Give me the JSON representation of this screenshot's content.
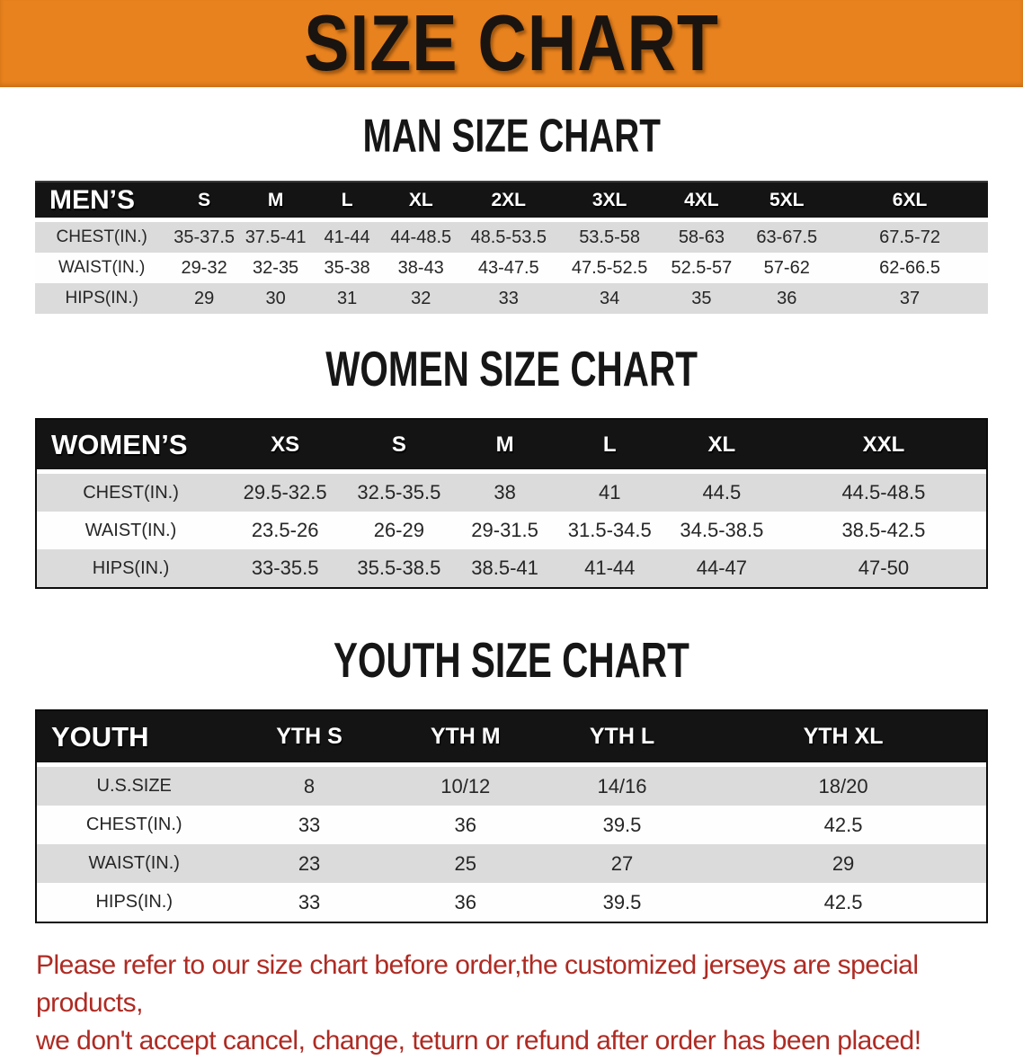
{
  "banner": {
    "title": "SIZE CHART",
    "bg_color": "#E8821E",
    "text_color": "#1a1410"
  },
  "colors": {
    "header_band": "#141414",
    "stripe_gray": "#DBDBDB",
    "stripe_white": "#FEFEFE",
    "disclaimer_red": "#AE2B23"
  },
  "sections": [
    {
      "heading": "MAN SIZE CHART",
      "table": {
        "header": [
          "MEN’S",
          "S",
          "M",
          "L",
          "XL",
          "2XL",
          "3XL",
          "4XL",
          "5XL",
          "6XL"
        ],
        "rows": [
          [
            "CHEST(IN.)",
            "35-37.5",
            "37.5-41",
            "41-44",
            "44-48.5",
            "48.5-53.5",
            "53.5-58",
            "58-63",
            "63-67.5",
            "67.5-72"
          ],
          [
            "WAIST(IN.)",
            "29-32",
            "32-35",
            "35-38",
            "38-43",
            "43-47.5",
            "47.5-52.5",
            "52.5-57",
            "57-62",
            "62-66.5"
          ],
          [
            "HIPS(IN.)",
            "29",
            "30",
            "31",
            "32",
            "33",
            "34",
            "35",
            "36",
            "37"
          ]
        ]
      }
    },
    {
      "heading": "WOMEN SIZE CHART",
      "table": {
        "header": [
          "WOMEN’S",
          "XS",
          "S",
          "M",
          "L",
          "XL",
          "XXL"
        ],
        "rows": [
          [
            "CHEST(IN.)",
            "29.5-32.5",
            "32.5-35.5",
            "38",
            "41",
            "44.5",
            "44.5-48.5"
          ],
          [
            "WAIST(IN.)",
            "23.5-26",
            "26-29",
            "29-31.5",
            "31.5-34.5",
            "34.5-38.5",
            "38.5-42.5"
          ],
          [
            "HIPS(IN.)",
            "33-35.5",
            "35.5-38.5",
            "38.5-41",
            "41-44",
            "44-47",
            "47-50"
          ]
        ]
      }
    },
    {
      "heading": "YOUTH SIZE CHART",
      "table": {
        "header": [
          "YOUTH",
          "YTH S",
          "YTH M",
          "YTH L",
          "YTH XL"
        ],
        "rows": [
          [
            "U.S.SIZE",
            "8",
            "10/12",
            "14/16",
            "18/20"
          ],
          [
            "CHEST(IN.)",
            "33",
            "36",
            "39.5",
            "42.5"
          ],
          [
            "WAIST(IN.)",
            "23",
            "25",
            "27",
            "29"
          ],
          [
            "HIPS(IN.)",
            "33",
            "36",
            "39.5",
            "42.5"
          ]
        ]
      }
    }
  ],
  "disclaimer": {
    "line1": "Please refer to our size chart before order,the customized jerseys are special products,",
    "line2": "we don't accept cancel, change, teturn or refund after order has been placed!"
  }
}
